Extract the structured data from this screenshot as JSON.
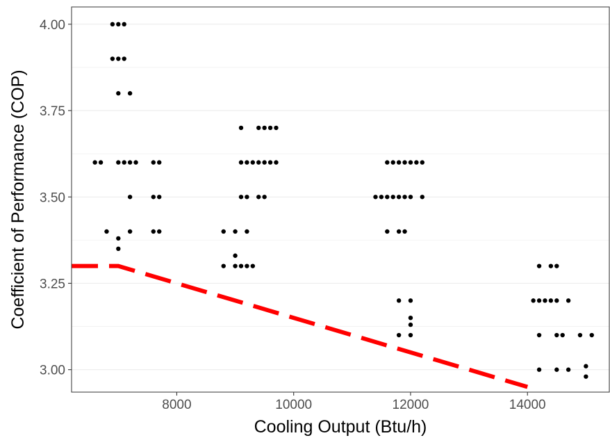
{
  "chart_data": {
    "type": "scatter",
    "title": "",
    "xlabel": "Cooling Output (Btu/h)",
    "ylabel": "Coefficient of Performance (COP)",
    "xlim": [
      6200,
      15400
    ],
    "ylim": [
      2.935,
      4.05
    ],
    "x_ticks": [
      8000,
      10000,
      12000,
      14000
    ],
    "x_tick_labels": [
      "8000",
      "10000",
      "12000",
      "14000"
    ],
    "y_ticks": [
      3.0,
      3.25,
      3.5,
      3.75,
      4.0
    ],
    "y_tick_labels": [
      "3.00",
      "3.25",
      "3.50",
      "3.75",
      "4.00"
    ],
    "grid": true,
    "legend": "none",
    "colors": {
      "points": "#000000",
      "threshold": "#ff0000",
      "grid": "#ebebeb",
      "panel_border": "#333333"
    },
    "points": [
      [
        6600,
        3.6
      ],
      [
        6700,
        3.6
      ],
      [
        6800,
        3.4
      ],
      [
        6900,
        4.0
      ],
      [
        7000,
        4.0
      ],
      [
        7100,
        4.0
      ],
      [
        6900,
        3.9
      ],
      [
        7000,
        3.9
      ],
      [
        7100,
        3.9
      ],
      [
        7000,
        3.8
      ],
      [
        7200,
        3.8
      ],
      [
        7000,
        3.6
      ],
      [
        7100,
        3.6
      ],
      [
        7200,
        3.6
      ],
      [
        7300,
        3.6
      ],
      [
        7200,
        3.5
      ],
      [
        7000,
        3.38
      ],
      [
        7000,
        3.35
      ],
      [
        7200,
        3.4
      ],
      [
        7600,
        3.6
      ],
      [
        7700,
        3.6
      ],
      [
        7600,
        3.5
      ],
      [
        7700,
        3.5
      ],
      [
        7600,
        3.4
      ],
      [
        7700,
        3.4
      ],
      [
        8800,
        3.4
      ],
      [
        9000,
        3.4
      ],
      [
        9200,
        3.4
      ],
      [
        9000,
        3.33
      ],
      [
        8800,
        3.3
      ],
      [
        9000,
        3.3
      ],
      [
        9100,
        3.3
      ],
      [
        9200,
        3.3
      ],
      [
        9300,
        3.3
      ],
      [
        9100,
        3.7
      ],
      [
        9400,
        3.7
      ],
      [
        9500,
        3.7
      ],
      [
        9600,
        3.7
      ],
      [
        9700,
        3.7
      ],
      [
        9100,
        3.6
      ],
      [
        9200,
        3.6
      ],
      [
        9300,
        3.6
      ],
      [
        9400,
        3.6
      ],
      [
        9500,
        3.6
      ],
      [
        9600,
        3.6
      ],
      [
        9700,
        3.6
      ],
      [
        9100,
        3.5
      ],
      [
        9200,
        3.5
      ],
      [
        9400,
        3.5
      ],
      [
        9500,
        3.5
      ],
      [
        11400,
        3.5
      ],
      [
        11500,
        3.5
      ],
      [
        11600,
        3.5
      ],
      [
        11700,
        3.5
      ],
      [
        11800,
        3.5
      ],
      [
        11900,
        3.5
      ],
      [
        12000,
        3.5
      ],
      [
        12200,
        3.5
      ],
      [
        11700,
        3.6
      ],
      [
        11800,
        3.6
      ],
      [
        11900,
        3.6
      ],
      [
        12000,
        3.6
      ],
      [
        12100,
        3.6
      ],
      [
        12200,
        3.6
      ],
      [
        11600,
        3.6
      ],
      [
        11600,
        3.4
      ],
      [
        11800,
        3.4
      ],
      [
        11900,
        3.4
      ],
      [
        11800,
        3.2
      ],
      [
        12000,
        3.2
      ],
      [
        12000,
        3.15
      ],
      [
        12000,
        3.13
      ],
      [
        11800,
        3.1
      ],
      [
        12000,
        3.1
      ],
      [
        14200,
        3.3
      ],
      [
        14400,
        3.3
      ],
      [
        14500,
        3.3
      ],
      [
        14100,
        3.2
      ],
      [
        14200,
        3.2
      ],
      [
        14300,
        3.2
      ],
      [
        14400,
        3.2
      ],
      [
        14500,
        3.2
      ],
      [
        14700,
        3.2
      ],
      [
        14200,
        3.1
      ],
      [
        14500,
        3.1
      ],
      [
        14600,
        3.1
      ],
      [
        14900,
        3.1
      ],
      [
        15100,
        3.1
      ],
      [
        14200,
        3.0
      ],
      [
        14500,
        3.0
      ],
      [
        14700,
        3.0
      ],
      [
        15000,
        3.01
      ],
      [
        15000,
        2.98
      ]
    ],
    "threshold_line": {
      "style": "dashed",
      "x": [
        6200,
        7000,
        14000
      ],
      "y": [
        3.3,
        3.3,
        2.95
      ]
    }
  }
}
